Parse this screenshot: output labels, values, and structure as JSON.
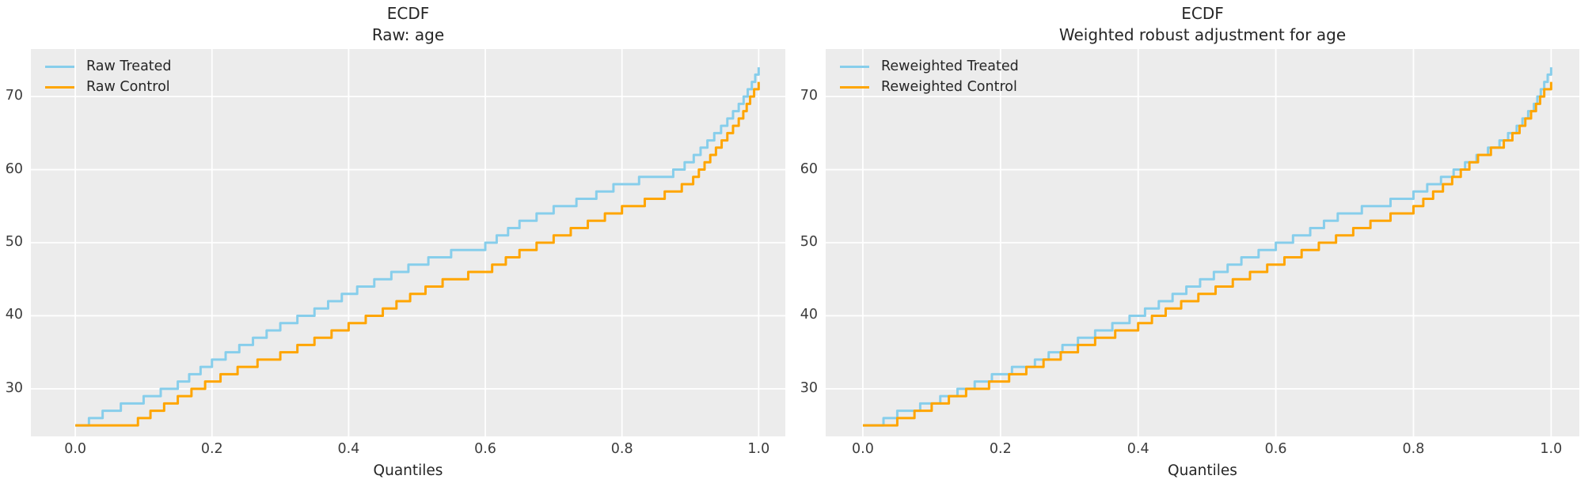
{
  "figure": {
    "background": "#ffffff",
    "plot_background": "#ececec",
    "grid_color": "#ffffff",
    "title_color": "#262626",
    "tick_color": "#3c3c3c",
    "treated_color": "#87CEEB",
    "control_color": "#FFA500"
  },
  "chart_data": [
    {
      "type": "line",
      "step": true,
      "title": "ECDF",
      "subtitle": "Raw: age",
      "xlabel": "Quantiles",
      "ylabel": "",
      "grid": true,
      "legend_position": "upper-left",
      "xticks": [
        0.0,
        0.2,
        0.4,
        0.6,
        0.8,
        1.0
      ],
      "yticks": [
        30,
        40,
        50,
        60,
        70
      ],
      "xlim": [
        -0.065,
        1.039
      ],
      "ylim": [
        23.5,
        76.5
      ],
      "series": [
        {
          "name": "Raw Treated",
          "color": "#87CEEB",
          "points": [
            [
              0,
              25
            ],
            [
              0.01,
              25.5
            ],
            [
              0.03,
              26.5
            ],
            [
              0.05,
              27.5
            ],
            [
              0.1,
              29
            ],
            [
              0.15,
              31
            ],
            [
              0.2,
              34
            ],
            [
              0.25,
              36.5
            ],
            [
              0.3,
              39
            ],
            [
              0.35,
              41
            ],
            [
              0.4,
              43.5
            ],
            [
              0.45,
              45.5
            ],
            [
              0.5,
              47.5
            ],
            [
              0.55,
              49
            ],
            [
              0.6,
              50
            ],
            [
              0.65,
              53
            ],
            [
              0.7,
              55
            ],
            [
              0.75,
              56.5
            ],
            [
              0.8,
              58.5
            ],
            [
              0.85,
              59.5
            ],
            [
              0.875,
              60
            ],
            [
              0.9,
              61.5
            ],
            [
              0.925,
              64
            ],
            [
              0.95,
              66.5
            ],
            [
              0.975,
              69.5
            ],
            [
              0.99,
              72
            ],
            [
              1.0,
              74
            ]
          ]
        },
        {
          "name": "Raw Control",
          "color": "#FFA500",
          "points": [
            [
              0,
              25
            ],
            [
              0.075,
              25
            ],
            [
              0.1,
              26.5
            ],
            [
              0.15,
              29
            ],
            [
              0.2,
              31.5
            ],
            [
              0.25,
              33.5
            ],
            [
              0.3,
              35
            ],
            [
              0.35,
              37
            ],
            [
              0.4,
              39
            ],
            [
              0.45,
              41
            ],
            [
              0.5,
              43.5
            ],
            [
              0.55,
              45.5
            ],
            [
              0.6,
              46.5
            ],
            [
              0.65,
              49
            ],
            [
              0.7,
              51
            ],
            [
              0.75,
              53
            ],
            [
              0.8,
              55
            ],
            [
              0.85,
              56.5
            ],
            [
              0.9,
              58.5
            ],
            [
              0.925,
              61.5
            ],
            [
              0.95,
              64.5
            ],
            [
              0.975,
              67.5
            ],
            [
              0.99,
              70.5
            ],
            [
              1.0,
              72
            ]
          ]
        }
      ]
    },
    {
      "type": "line",
      "step": true,
      "title": "ECDF",
      "subtitle": "Weighted robust adjustment for age",
      "xlabel": "Quantiles",
      "ylabel": "",
      "grid": true,
      "legend_position": "upper-left",
      "xticks": [
        0.0,
        0.2,
        0.4,
        0.6,
        0.8,
        1.0
      ],
      "yticks": [
        30,
        40,
        50,
        60,
        70
      ],
      "xlim": [
        -0.054,
        1.041
      ],
      "ylim": [
        23.5,
        76.5
      ],
      "series": [
        {
          "name": "Reweighted Treated",
          "color": "#87CEEB",
          "points": [
            [
              0,
              25
            ],
            [
              0.02,
              25.5
            ],
            [
              0.05,
              27
            ],
            [
              0.1,
              28.5
            ],
            [
              0.15,
              30.5
            ],
            [
              0.2,
              32.5
            ],
            [
              0.25,
              34
            ],
            [
              0.3,
              36.5
            ],
            [
              0.35,
              38.5
            ],
            [
              0.4,
              40.5
            ],
            [
              0.45,
              43
            ],
            [
              0.5,
              45.5
            ],
            [
              0.55,
              48
            ],
            [
              0.6,
              50
            ],
            [
              0.65,
              52
            ],
            [
              0.7,
              54.5
            ],
            [
              0.75,
              55.5
            ],
            [
              0.8,
              57
            ],
            [
              0.85,
              59.5
            ],
            [
              0.9,
              62.5
            ],
            [
              0.925,
              64
            ],
            [
              0.95,
              66
            ],
            [
              0.975,
              69
            ],
            [
              0.99,
              72
            ],
            [
              1.0,
              74
            ]
          ]
        },
        {
          "name": "Reweighted Control",
          "color": "#FFA500",
          "points": [
            [
              0,
              25
            ],
            [
              0.035,
              25
            ],
            [
              0.05,
              26
            ],
            [
              0.1,
              28
            ],
            [
              0.15,
              30
            ],
            [
              0.2,
              31.5
            ],
            [
              0.25,
              33.5
            ],
            [
              0.3,
              35.5
            ],
            [
              0.35,
              37.5
            ],
            [
              0.4,
              39
            ],
            [
              0.45,
              41.5
            ],
            [
              0.5,
              43.5
            ],
            [
              0.55,
              45.5
            ],
            [
              0.6,
              47.5
            ],
            [
              0.65,
              49.5
            ],
            [
              0.7,
              51.5
            ],
            [
              0.75,
              53.5
            ],
            [
              0.8,
              55
            ],
            [
              0.85,
              58.5
            ],
            [
              0.9,
              62.5
            ],
            [
              0.925,
              63.5
            ],
            [
              0.95,
              65.5
            ],
            [
              0.975,
              68.5
            ],
            [
              0.99,
              71
            ],
            [
              1.0,
              72
            ]
          ]
        }
      ]
    }
  ]
}
